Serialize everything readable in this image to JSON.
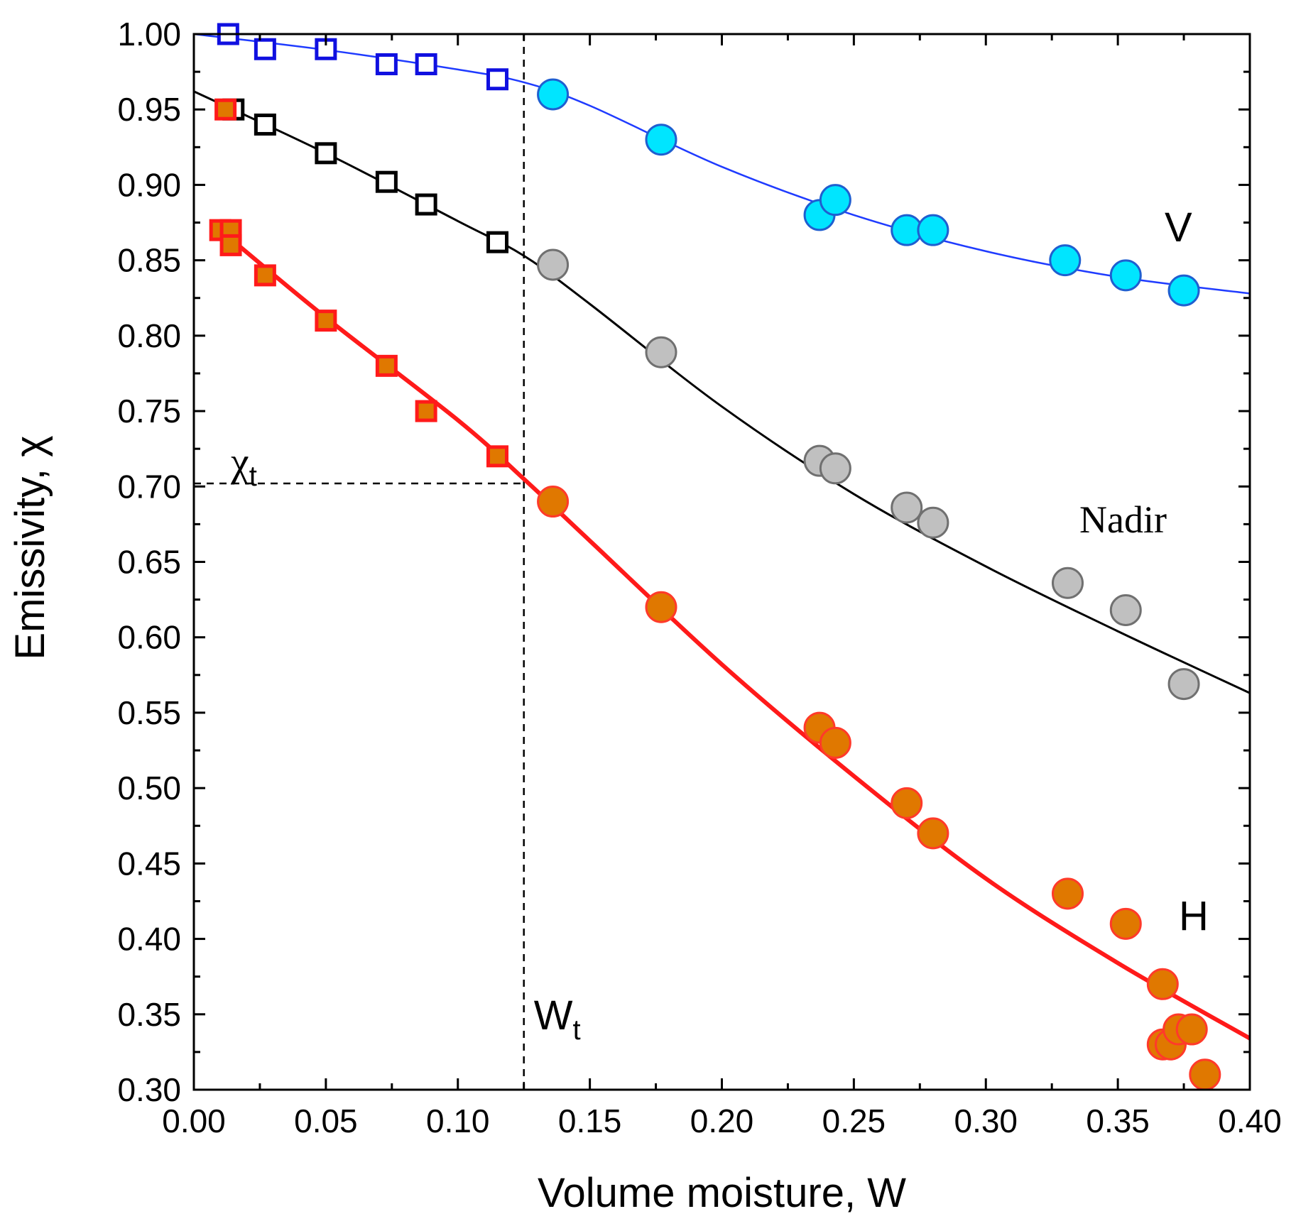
{
  "chart_data": {
    "type": "scatter",
    "title": "",
    "xlabel": "Volume moisture, W",
    "ylabel": "Emissivity, χ",
    "xlim": [
      0.0,
      0.4
    ],
    "ylim": [
      0.3,
      1.0
    ],
    "grid": false,
    "x_ticks": [
      0.0,
      0.05,
      0.1,
      0.15,
      0.2,
      0.25,
      0.3,
      0.35,
      0.4
    ],
    "x_tick_labels": [
      "0.00",
      "0.05",
      "0.10",
      "0.15",
      "0.20",
      "0.25",
      "0.30",
      "0.35",
      "0.40"
    ],
    "y_ticks": [
      0.3,
      0.35,
      0.4,
      0.45,
      0.5,
      0.55,
      0.6,
      0.65,
      0.7,
      0.75,
      0.8,
      0.85,
      0.9,
      0.95,
      1.0
    ],
    "y_tick_labels": [
      "0.30",
      "0.35",
      "0.40",
      "0.45",
      "0.50",
      "0.55",
      "0.60",
      "0.65",
      "0.70",
      "0.75",
      "0.80",
      "0.85",
      "0.90",
      "0.95",
      "1.00"
    ],
    "threshold": {
      "W_t": 0.125,
      "chi_t": 0.702,
      "W_label_main": "W",
      "W_label_sub": "t",
      "chi_label_main": "χ",
      "chi_label_sub": "t"
    },
    "series": [
      {
        "name": "V",
        "label": "V",
        "color_line": "#1f3bff",
        "open_square_color": "#1010e0",
        "circle_fill": "#00e5ff",
        "circle_stroke": "#1f5fd0",
        "open_squares": [
          [
            0.013,
            1.0
          ],
          [
            0.027,
            0.99
          ],
          [
            0.05,
            0.99
          ],
          [
            0.073,
            0.98
          ],
          [
            0.088,
            0.98
          ],
          [
            0.115,
            0.97
          ]
        ],
        "circles": [
          [
            0.136,
            0.96
          ],
          [
            0.177,
            0.93
          ],
          [
            0.237,
            0.88
          ],
          [
            0.243,
            0.89
          ],
          [
            0.27,
            0.87
          ],
          [
            0.28,
            0.87
          ],
          [
            0.33,
            0.85
          ],
          [
            0.353,
            0.84
          ],
          [
            0.375,
            0.83
          ]
        ],
        "fit_line": [
          [
            0.0,
            1.0
          ],
          [
            0.05,
            0.9895
          ],
          [
            0.1,
            0.9765
          ],
          [
            0.125,
            0.968
          ],
          [
            0.15,
            0.9525
          ],
          [
            0.2,
            0.912
          ],
          [
            0.25,
            0.88
          ],
          [
            0.3,
            0.856
          ],
          [
            0.35,
            0.839
          ],
          [
            0.4,
            0.828
          ]
        ]
      },
      {
        "name": "Nadir",
        "label": "Nadir",
        "color_line": "#000000",
        "open_square_color": "#000000",
        "circle_fill": "#c0c0c0",
        "circle_stroke": "#707070",
        "open_squares": [
          [
            0.015,
            0.95
          ],
          [
            0.027,
            0.94
          ],
          [
            0.05,
            0.921
          ],
          [
            0.073,
            0.902
          ],
          [
            0.088,
            0.887
          ],
          [
            0.115,
            0.862
          ]
        ],
        "circles": [
          [
            0.136,
            0.847
          ],
          [
            0.177,
            0.789
          ],
          [
            0.237,
            0.717
          ],
          [
            0.243,
            0.712
          ],
          [
            0.27,
            0.686
          ],
          [
            0.28,
            0.676
          ],
          [
            0.331,
            0.636
          ],
          [
            0.353,
            0.618
          ],
          [
            0.375,
            0.569
          ]
        ],
        "fit_line": [
          [
            0.0,
            0.962
          ],
          [
            0.05,
            0.921
          ],
          [
            0.1,
            0.876
          ],
          [
            0.125,
            0.853
          ],
          [
            0.15,
            0.821
          ],
          [
            0.2,
            0.753
          ],
          [
            0.25,
            0.695
          ],
          [
            0.3,
            0.647
          ],
          [
            0.35,
            0.604
          ],
          [
            0.4,
            0.563
          ]
        ]
      },
      {
        "name": "H",
        "label": "H",
        "color_line": "#ff1a1a",
        "square_fill": "#e07800",
        "square_stroke": "#ff1a1a",
        "circle_fill": "#e07800",
        "circle_stroke": "#ff3a2a",
        "filled_squares": [
          [
            0.012,
            0.95
          ],
          [
            0.01,
            0.87
          ],
          [
            0.014,
            0.87
          ],
          [
            0.014,
            0.86
          ],
          [
            0.027,
            0.84
          ],
          [
            0.05,
            0.81
          ],
          [
            0.073,
            0.78
          ],
          [
            0.088,
            0.75
          ],
          [
            0.115,
            0.72
          ]
        ],
        "circles": [
          [
            0.136,
            0.69
          ],
          [
            0.177,
            0.62
          ],
          [
            0.237,
            0.54
          ],
          [
            0.243,
            0.53
          ],
          [
            0.27,
            0.49
          ],
          [
            0.28,
            0.47
          ],
          [
            0.331,
            0.43
          ],
          [
            0.353,
            0.41
          ],
          [
            0.367,
            0.37
          ],
          [
            0.367,
            0.33
          ],
          [
            0.37,
            0.33
          ],
          [
            0.373,
            0.34
          ],
          [
            0.378,
            0.34
          ],
          [
            0.383,
            0.31
          ]
        ],
        "fit_line": [
          [
            0.01,
            0.87
          ],
          [
            0.05,
            0.812
          ],
          [
            0.1,
            0.744
          ],
          [
            0.125,
            0.705
          ],
          [
            0.15,
            0.664
          ],
          [
            0.2,
            0.582
          ],
          [
            0.25,
            0.508
          ],
          [
            0.3,
            0.44
          ],
          [
            0.35,
            0.384
          ],
          [
            0.4,
            0.334
          ]
        ]
      }
    ]
  }
}
